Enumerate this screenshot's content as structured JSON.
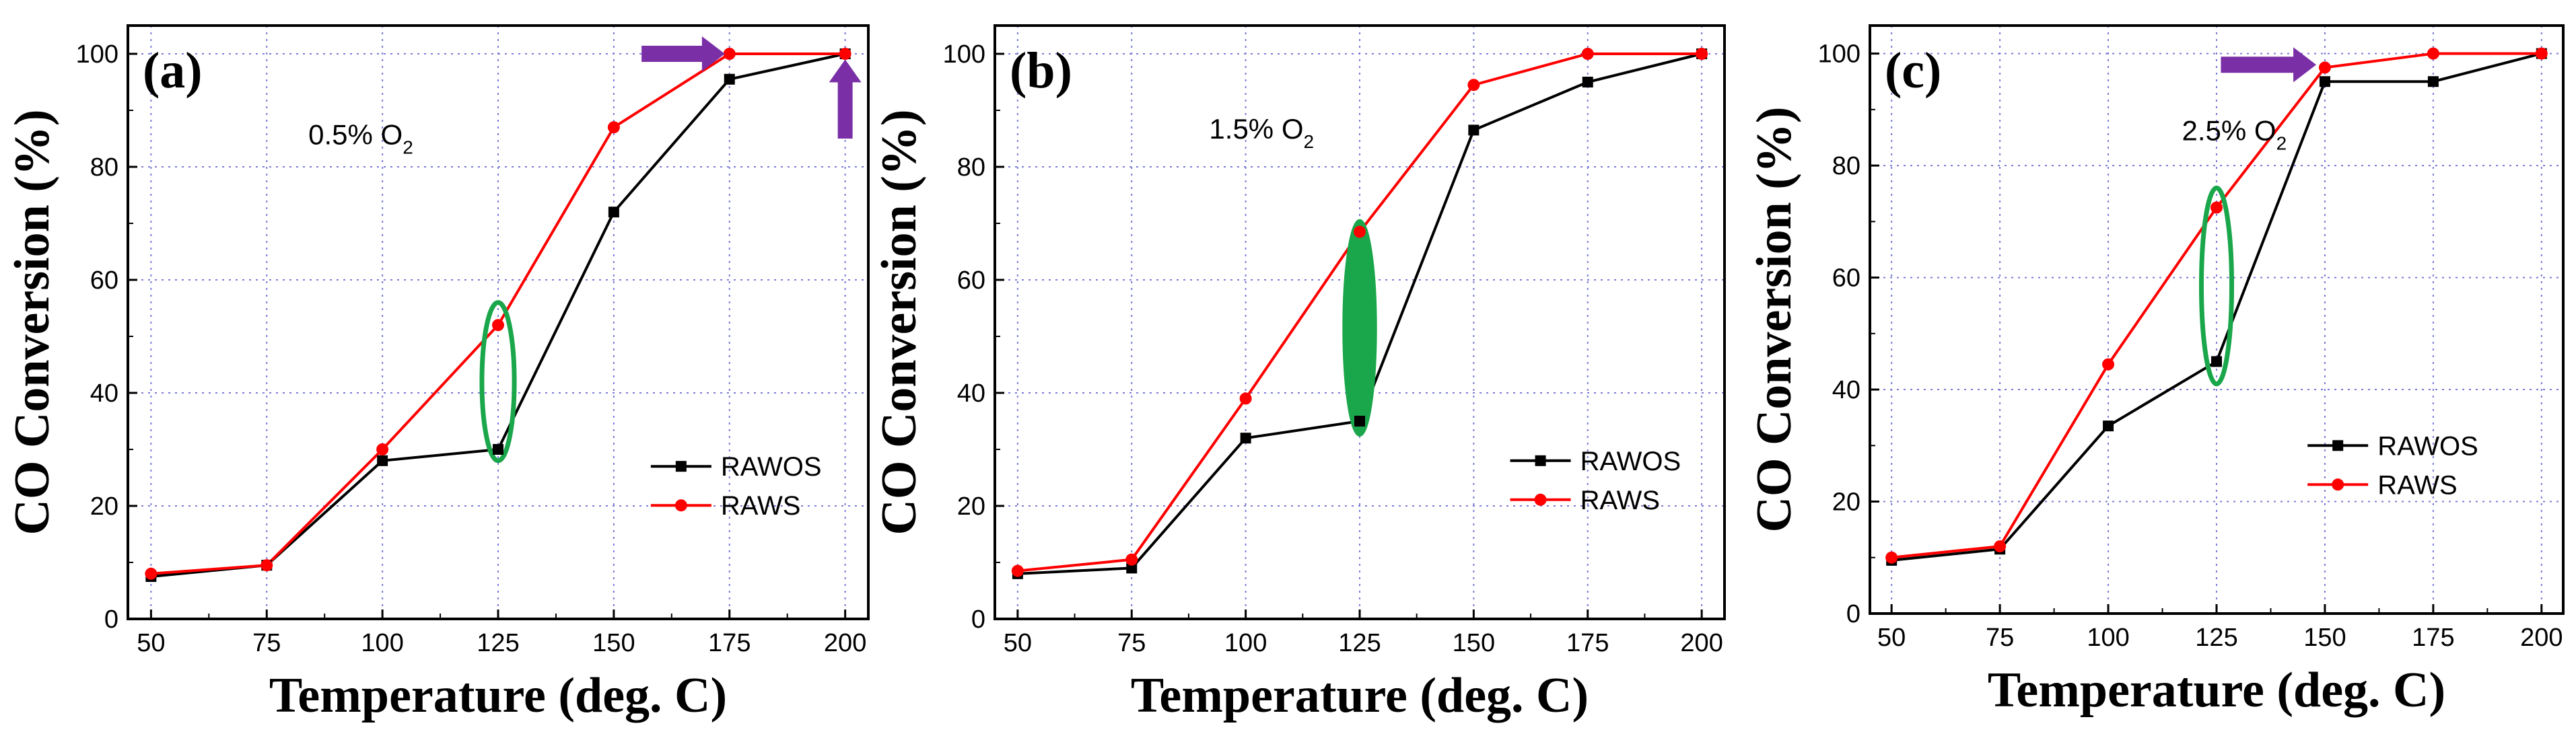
{
  "chart_data": [
    {
      "type": "line",
      "panel_label": "(a)",
      "condition": {
        "text": "0.5% O",
        "subscript": "2"
      },
      "xlabel": "Temperature (deg. C)",
      "ylabel": "CO Conversion (%)",
      "xlim": [
        45,
        205
      ],
      "ylim": [
        0,
        105
      ],
      "xticks": [
        50,
        75,
        100,
        125,
        150,
        175,
        200
      ],
      "yticks": [
        0,
        20,
        40,
        60,
        80,
        100
      ],
      "grid": true,
      "legend_position": "right",
      "x": [
        50,
        75,
        100,
        125,
        150,
        175,
        200
      ],
      "series": [
        {
          "name": "RAWOS",
          "color": "#000000",
          "marker": "square",
          "values": [
            7.5,
            9.5,
            28,
            30,
            72,
            95.5,
            100
          ]
        },
        {
          "name": "RAWS",
          "color": "#ff0000",
          "marker": "circle",
          "values": [
            8,
            9.5,
            30,
            52,
            87,
            100,
            100
          ]
        }
      ],
      "annotations": [
        {
          "type": "ellipse",
          "style": "outline",
          "color": "#1aa64a",
          "x": 125,
          "y": 42,
          "rx_data": 3.5,
          "ry_data": 14
        },
        {
          "type": "arrow",
          "direction": "right",
          "color": "#7a2fa6",
          "x_from": 156,
          "x_to": 174,
          "y": 100
        },
        {
          "type": "arrow",
          "direction": "up",
          "color": "#7a2fa6",
          "x": 200,
          "y_from": 85,
          "y_to": 99
        }
      ]
    },
    {
      "type": "line",
      "panel_label": "(b)",
      "condition": {
        "text": "1.5% O",
        "subscript": "2"
      },
      "xlabel": "Temperature (deg. C)",
      "ylabel": "CO Conversion (%)",
      "xlim": [
        45,
        205
      ],
      "ylim": [
        0,
        105
      ],
      "xticks": [
        50,
        75,
        100,
        125,
        150,
        175,
        200
      ],
      "yticks": [
        0,
        20,
        40,
        60,
        80,
        100
      ],
      "grid": true,
      "legend_position": "right",
      "x": [
        50,
        75,
        100,
        125,
        150,
        175,
        200
      ],
      "series": [
        {
          "name": "RAWOS",
          "color": "#000000",
          "marker": "square",
          "values": [
            8,
            9,
            32,
            35,
            86.5,
            95,
            100
          ]
        },
        {
          "name": "RAWS",
          "color": "#ff0000",
          "marker": "circle",
          "values": [
            8.5,
            10.5,
            39,
            68.5,
            94.5,
            100,
            100
          ]
        }
      ],
      "annotations": [
        {
          "type": "ellipse",
          "style": "filled",
          "color": "#1aa64a",
          "x": 125,
          "y": 51.5,
          "rx_data": 3.5,
          "ry_data": 19
        }
      ]
    },
    {
      "type": "line",
      "panel_label": "(c)",
      "condition": {
        "text": "2.5% O",
        "subscript": "2"
      },
      "xlabel": "Temperature (deg. C)",
      "ylabel": "CO Conversion (%)",
      "xlim": [
        45,
        205
      ],
      "ylim": [
        0,
        105
      ],
      "xticks": [
        50,
        75,
        100,
        125,
        150,
        175,
        200
      ],
      "yticks": [
        0,
        20,
        40,
        60,
        80,
        100
      ],
      "grid": true,
      "legend_position": "right",
      "x": [
        50,
        75,
        100,
        125,
        150,
        175,
        200
      ],
      "series": [
        {
          "name": "RAWOS",
          "color": "#000000",
          "marker": "square",
          "values": [
            9.5,
            11.5,
            33.5,
            45,
            95,
            95,
            100
          ]
        },
        {
          "name": "RAWS",
          "color": "#ff0000",
          "marker": "circle",
          "values": [
            10,
            12,
            44.5,
            72.5,
            97.5,
            100,
            100
          ]
        }
      ],
      "annotations": [
        {
          "type": "ellipse",
          "style": "outline",
          "color": "#1aa64a",
          "x": 125,
          "y": 58.5,
          "rx_data": 3.5,
          "ry_data": 17.5
        },
        {
          "type": "arrow",
          "direction": "right",
          "color": "#7a2fa6",
          "x_from": 126,
          "x_to": 148,
          "y": 98
        }
      ]
    }
  ]
}
